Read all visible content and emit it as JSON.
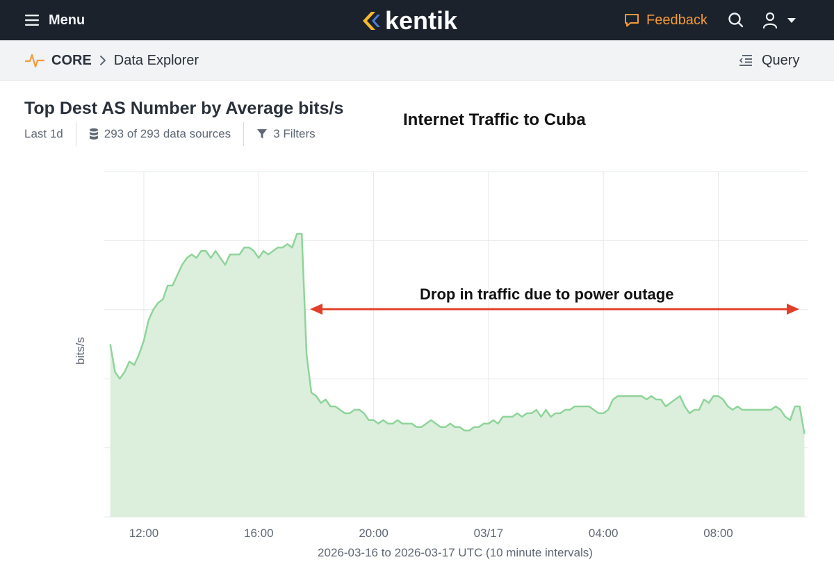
{
  "topbar": {
    "menu_label": "Menu",
    "logo_text": "kentik",
    "feedback_label": "Feedback",
    "accent_color": "#f39a3a"
  },
  "breadcrumb": {
    "section": "CORE",
    "page": "Data Explorer",
    "query_label": "Query"
  },
  "panel": {
    "title": "Top Dest AS Number by Average bits/s",
    "time_range": "Last 1d",
    "data_sources": "293 of 293 data sources",
    "filters": "3 Filters"
  },
  "annotations": {
    "title": "Internet Traffic to Cuba",
    "arrow_text": "Drop in traffic due to power outage",
    "arrow_color": "#e0402a"
  },
  "chart_data": {
    "type": "area",
    "ylabel": "bits/s",
    "xlabel": "2026-03-16 to 2026-03-17 UTC (10 minute intervals)",
    "x_ticks": [
      "12:00",
      "16:00",
      "20:00",
      "03/17",
      "04:00",
      "08:00"
    ],
    "x_tick_hours": [
      12,
      16,
      20,
      24,
      28,
      32
    ],
    "x_start_hour": 10.83,
    "x_step_hours": 0.1667,
    "grid": true,
    "y_gridlines": 5,
    "line_color": "#8fd49a",
    "fill_color": "#dcefdd",
    "series": [
      {
        "values": [
          50,
          42,
          40,
          42,
          45,
          44,
          47,
          51,
          57,
          60,
          62,
          63,
          67,
          67,
          70,
          73,
          75,
          76,
          75,
          77,
          77,
          75,
          77,
          75,
          73,
          76,
          76,
          76,
          78,
          78,
          77,
          75,
          77,
          76,
          77,
          78,
          78,
          79,
          78,
          82,
          82,
          47,
          36,
          35,
          33,
          34,
          32,
          32,
          31,
          30,
          30,
          31,
          31,
          30,
          28,
          28,
          27,
          28,
          27,
          27,
          28,
          27,
          27,
          27,
          26,
          26,
          27,
          28,
          27,
          26,
          26,
          27,
          26,
          26,
          25,
          25,
          26,
          26,
          27,
          27,
          28,
          27,
          29,
          29,
          29,
          30,
          29,
          30,
          30,
          31,
          29,
          31,
          29,
          30,
          30,
          31,
          31,
          32,
          32,
          32,
          32,
          31,
          30,
          30,
          31,
          34,
          35,
          35,
          35,
          35,
          35,
          35,
          34,
          35,
          34,
          34,
          32,
          33,
          34,
          35,
          32,
          30,
          31,
          31,
          34,
          33,
          35,
          35,
          34,
          32,
          31,
          32,
          31,
          31,
          31,
          31,
          31,
          31,
          31,
          32,
          31,
          29,
          28,
          32,
          32,
          24
        ]
      }
    ],
    "ylim": [
      0,
      100
    ]
  }
}
